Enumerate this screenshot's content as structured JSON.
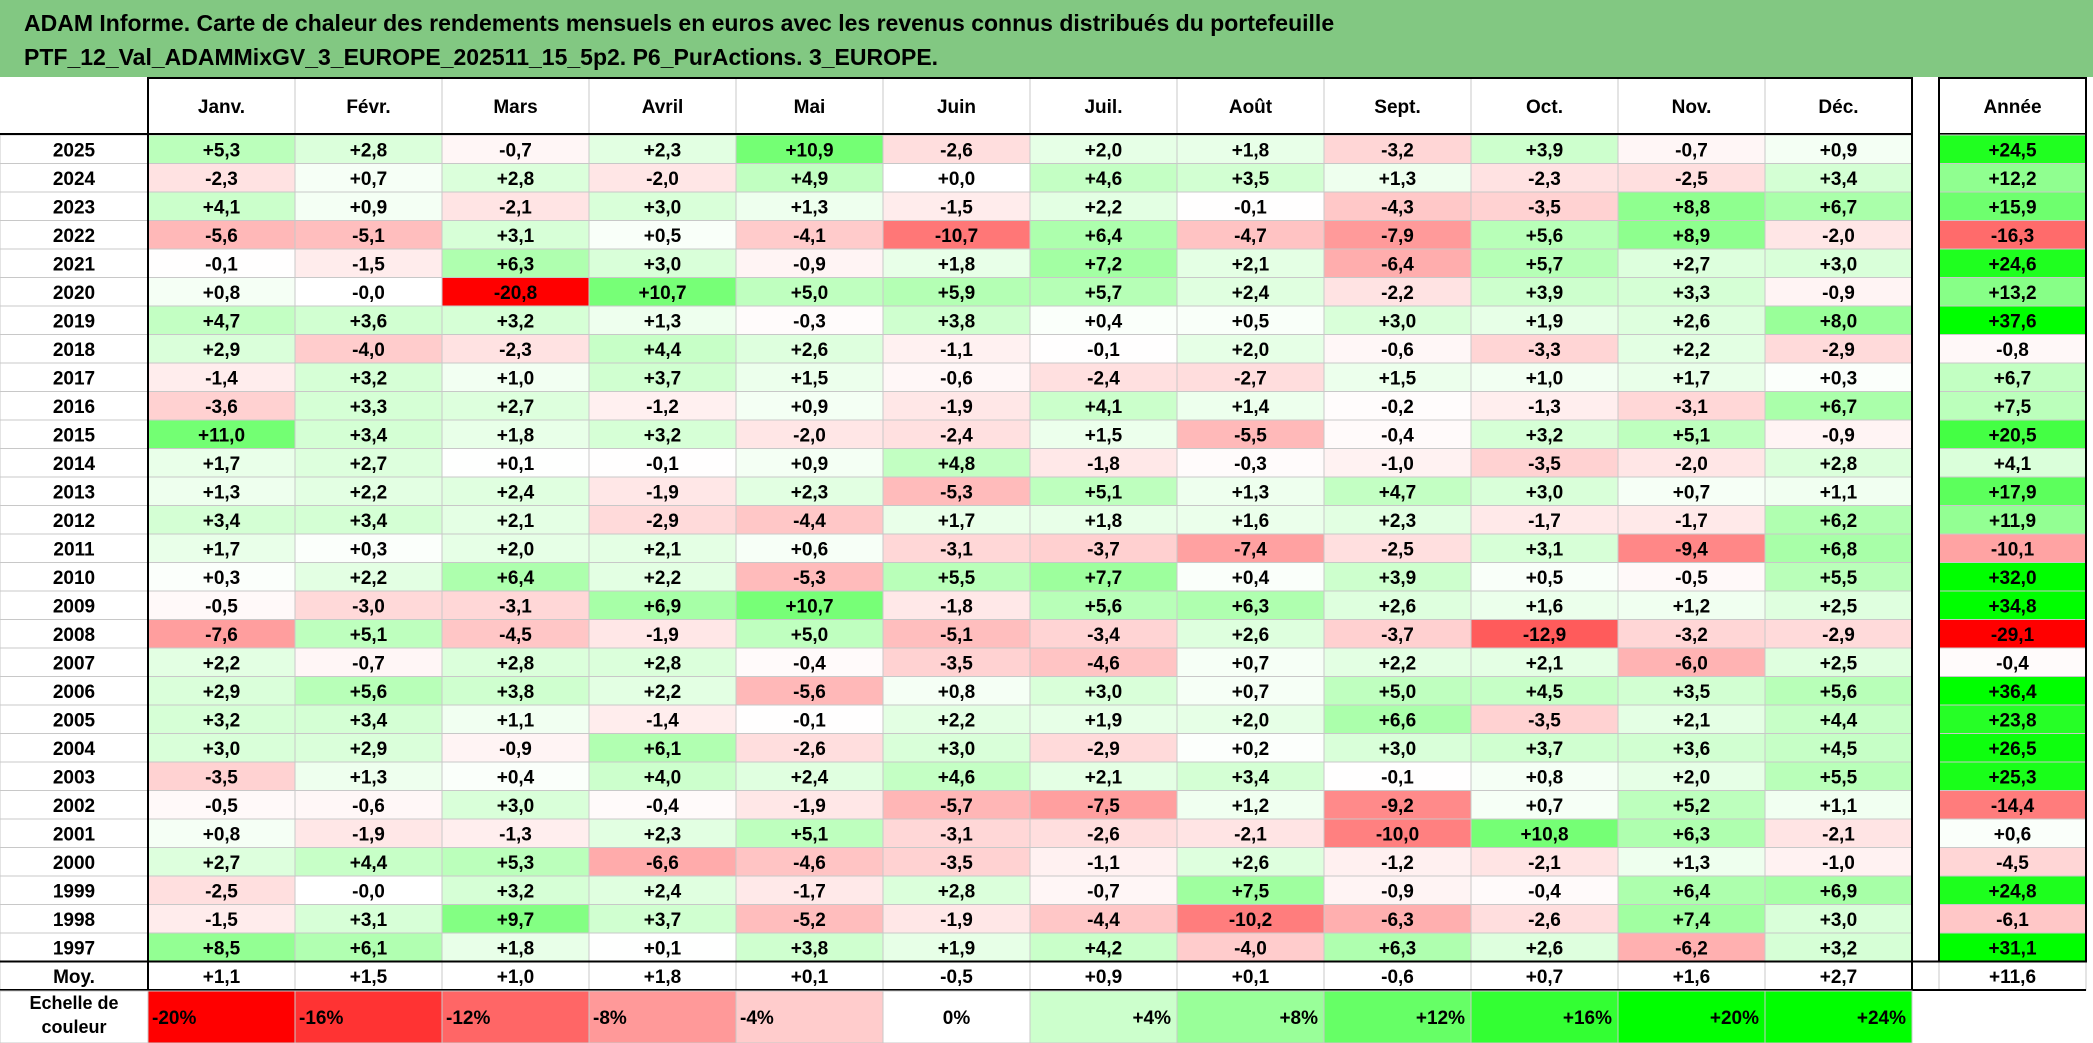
{
  "title": {
    "line1": "ADAM Informe. Carte de chaleur des rendements mensuels en euros avec les revenus connus distribués du portefeuille",
    "line2": "PTF_12_Val_ADAMMixGV_3_EUROPE_202511_15_5p2. P6_PurActions. 3_EUROPE."
  },
  "colors": {
    "title_bg": "#82c882",
    "positive_max": "#00ff00",
    "negative_max": "#ff0000",
    "neutral": "#ffffff"
  },
  "chart_data": {
    "type": "heatmap",
    "columns": [
      "Janv.",
      "Févr.",
      "Mars",
      "Avril",
      "Mai",
      "Juin",
      "Juil.",
      "Août",
      "Sept.",
      "Oct.",
      "Nov.",
      "Déc."
    ],
    "annual_header": "Année",
    "rows": [
      {
        "year": "2025",
        "months": [
          "+5,3",
          "+2,8",
          "-0,7",
          "+2,3",
          "+10,9",
          "-2,6",
          "+2,0",
          "+1,8",
          "-3,2",
          "+3,9",
          "-0,7",
          "+0,9"
        ],
        "annual": "+24,5"
      },
      {
        "year": "2024",
        "months": [
          "-2,3",
          "+0,7",
          "+2,8",
          "-2,0",
          "+4,9",
          "+0,0",
          "+4,6",
          "+3,5",
          "+1,3",
          "-2,3",
          "-2,5",
          "+3,4"
        ],
        "annual": "+12,2"
      },
      {
        "year": "2023",
        "months": [
          "+4,1",
          "+0,9",
          "-2,1",
          "+3,0",
          "+1,3",
          "-1,5",
          "+2,2",
          "-0,1",
          "-4,3",
          "-3,5",
          "+8,8",
          "+6,7"
        ],
        "annual": "+15,9"
      },
      {
        "year": "2022",
        "months": [
          "-5,6",
          "-5,1",
          "+3,1",
          "+0,5",
          "-4,1",
          "-10,7",
          "+6,4",
          "-4,7",
          "-7,9",
          "+5,6",
          "+8,9",
          "-2,0"
        ],
        "annual": "-16,3"
      },
      {
        "year": "2021",
        "months": [
          "-0,1",
          "-1,5",
          "+6,3",
          "+3,0",
          "-0,9",
          "+1,8",
          "+7,2",
          "+2,1",
          "-6,4",
          "+5,7",
          "+2,7",
          "+3,0"
        ],
        "annual": "+24,6"
      },
      {
        "year": "2020",
        "months": [
          "+0,8",
          "-0,0",
          "-20,8",
          "+10,7",
          "+5,0",
          "+5,9",
          "+5,7",
          "+2,4",
          "-2,2",
          "+3,9",
          "+3,3",
          "-0,9"
        ],
        "annual": "+13,2"
      },
      {
        "year": "2019",
        "months": [
          "+4,7",
          "+3,6",
          "+3,2",
          "+1,3",
          "-0,3",
          "+3,8",
          "+0,4",
          "+0,5",
          "+3,0",
          "+1,9",
          "+2,6",
          "+8,0"
        ],
        "annual": "+37,6"
      },
      {
        "year": "2018",
        "months": [
          "+2,9",
          "-4,0",
          "-2,3",
          "+4,4",
          "+2,6",
          "-1,1",
          "-0,1",
          "+2,0",
          "-0,6",
          "-3,3",
          "+2,2",
          "-2,9"
        ],
        "annual": "-0,8"
      },
      {
        "year": "2017",
        "months": [
          "-1,4",
          "+3,2",
          "+1,0",
          "+3,7",
          "+1,5",
          "-0,6",
          "-2,4",
          "-2,7",
          "+1,5",
          "+1,0",
          "+1,7",
          "+0,3"
        ],
        "annual": "+6,7"
      },
      {
        "year": "2016",
        "months": [
          "-3,6",
          "+3,3",
          "+2,7",
          "-1,2",
          "+0,9",
          "-1,9",
          "+4,1",
          "+1,4",
          "-0,2",
          "-1,3",
          "-3,1",
          "+6,7"
        ],
        "annual": "+7,5"
      },
      {
        "year": "2015",
        "months": [
          "+11,0",
          "+3,4",
          "+1,8",
          "+3,2",
          "-2,0",
          "-2,4",
          "+1,5",
          "-5,5",
          "-0,4",
          "+3,2",
          "+5,1",
          "-0,9"
        ],
        "annual": "+20,5"
      },
      {
        "year": "2014",
        "months": [
          "+1,7",
          "+2,7",
          "+0,1",
          "-0,1",
          "+0,9",
          "+4,8",
          "-1,8",
          "-0,3",
          "-1,0",
          "-3,5",
          "-2,0",
          "+2,8"
        ],
        "annual": "+4,1"
      },
      {
        "year": "2013",
        "months": [
          "+1,3",
          "+2,2",
          "+2,4",
          "-1,9",
          "+2,3",
          "-5,3",
          "+5,1",
          "+1,3",
          "+4,7",
          "+3,0",
          "+0,7",
          "+1,1"
        ],
        "annual": "+17,9"
      },
      {
        "year": "2012",
        "months": [
          "+3,4",
          "+3,4",
          "+2,1",
          "-2,9",
          "-4,4",
          "+1,7",
          "+1,8",
          "+1,6",
          "+2,3",
          "-1,7",
          "-1,7",
          "+6,2"
        ],
        "annual": "+11,9"
      },
      {
        "year": "2011",
        "months": [
          "+1,7",
          "+0,3",
          "+2,0",
          "+2,1",
          "+0,6",
          "-3,1",
          "-3,7",
          "-7,4",
          "-2,5",
          "+3,1",
          "-9,4",
          "+6,8"
        ],
        "annual": "-10,1"
      },
      {
        "year": "2010",
        "months": [
          "+0,3",
          "+2,2",
          "+6,4",
          "+2,2",
          "-5,3",
          "+5,5",
          "+7,7",
          "+0,4",
          "+3,9",
          "+0,5",
          "-0,5",
          "+5,5"
        ],
        "annual": "+32,0"
      },
      {
        "year": "2009",
        "months": [
          "-0,5",
          "-3,0",
          "-3,1",
          "+6,9",
          "+10,7",
          "-1,8",
          "+5,6",
          "+6,3",
          "+2,6",
          "+1,6",
          "+1,2",
          "+2,5"
        ],
        "annual": "+34,8"
      },
      {
        "year": "2008",
        "months": [
          "-7,6",
          "+5,1",
          "-4,5",
          "-1,9",
          "+5,0",
          "-5,1",
          "-3,4",
          "+2,6",
          "-3,7",
          "-12,9",
          "-3,2",
          "-2,9"
        ],
        "annual": "-29,1"
      },
      {
        "year": "2007",
        "months": [
          "+2,2",
          "-0,7",
          "+2,8",
          "+2,8",
          "-0,4",
          "-3,5",
          "-4,6",
          "+0,7",
          "+2,2",
          "+2,1",
          "-6,0",
          "+2,5"
        ],
        "annual": "-0,4"
      },
      {
        "year": "2006",
        "months": [
          "+2,9",
          "+5,6",
          "+3,8",
          "+2,2",
          "-5,6",
          "+0,8",
          "+3,0",
          "+0,7",
          "+5,0",
          "+4,5",
          "+3,5",
          "+5,6"
        ],
        "annual": "+36,4"
      },
      {
        "year": "2005",
        "months": [
          "+3,2",
          "+3,4",
          "+1,1",
          "-1,4",
          "-0,1",
          "+2,2",
          "+1,9",
          "+2,0",
          "+6,6",
          "-3,5",
          "+2,1",
          "+4,4"
        ],
        "annual": "+23,8"
      },
      {
        "year": "2004",
        "months": [
          "+3,0",
          "+2,9",
          "-0,9",
          "+6,1",
          "-2,6",
          "+3,0",
          "-2,9",
          "+0,2",
          "+3,0",
          "+3,7",
          "+3,6",
          "+4,5"
        ],
        "annual": "+26,5"
      },
      {
        "year": "2003",
        "months": [
          "-3,5",
          "+1,3",
          "+0,4",
          "+4,0",
          "+2,4",
          "+4,6",
          "+2,1",
          "+3,4",
          "-0,1",
          "+0,8",
          "+2,0",
          "+5,5"
        ],
        "annual": "+25,3"
      },
      {
        "year": "2002",
        "months": [
          "-0,5",
          "-0,6",
          "+3,0",
          "-0,4",
          "-1,9",
          "-5,7",
          "-7,5",
          "+1,2",
          "-9,2",
          "+0,7",
          "+5,2",
          "+1,1"
        ],
        "annual": "-14,4"
      },
      {
        "year": "2001",
        "months": [
          "+0,8",
          "-1,9",
          "-1,3",
          "+2,3",
          "+5,1",
          "-3,1",
          "-2,6",
          "-2,1",
          "-10,0",
          "+10,8",
          "+6,3",
          "-2,1"
        ],
        "annual": "+0,6"
      },
      {
        "year": "2000",
        "months": [
          "+2,7",
          "+4,4",
          "+5,3",
          "-6,6",
          "-4,6",
          "-3,5",
          "-1,1",
          "+2,6",
          "-1,2",
          "-2,1",
          "+1,3",
          "-1,0"
        ],
        "annual": "-4,5"
      },
      {
        "year": "1999",
        "months": [
          "-2,5",
          "-0,0",
          "+3,2",
          "+2,4",
          "-1,7",
          "+2,8",
          "-0,7",
          "+7,5",
          "-0,9",
          "-0,4",
          "+6,4",
          "+6,9"
        ],
        "annual": "+24,8"
      },
      {
        "year": "1998",
        "months": [
          "-1,5",
          "+3,1",
          "+9,7",
          "+3,7",
          "-5,2",
          "-1,9",
          "-4,4",
          "-10,2",
          "-6,3",
          "-2,6",
          "+7,4",
          "+3,0"
        ],
        "annual": "-6,1"
      },
      {
        "year": "1997",
        "months": [
          "+8,5",
          "+6,1",
          "+1,8",
          "+0,1",
          "+3,8",
          "+1,9",
          "+4,2",
          "-4,0",
          "+6,3",
          "+2,6",
          "-6,2",
          "+3,2"
        ],
        "annual": "+31,1"
      }
    ],
    "average": {
      "label": "Moy.",
      "months": [
        "+1,1",
        "+1,5",
        "+1,0",
        "+1,8",
        "+0,1",
        "-0,5",
        "+0,9",
        "+0,1",
        "-0,6",
        "+0,7",
        "+1,6",
        "+2,7"
      ],
      "annual": "+11,6"
    },
    "scale": {
      "label_line1": "Echelle de",
      "label_line2": "couleur",
      "stops": [
        "-20%",
        "-16%",
        "-12%",
        "-8%",
        "-4%",
        "0%",
        "+4%",
        "+8%",
        "+12%",
        "+16%",
        "+20%",
        "+24%"
      ],
      "stop_values": [
        -20,
        -16,
        -12,
        -8,
        -4,
        0,
        4,
        8,
        12,
        16,
        20,
        24
      ]
    }
  }
}
